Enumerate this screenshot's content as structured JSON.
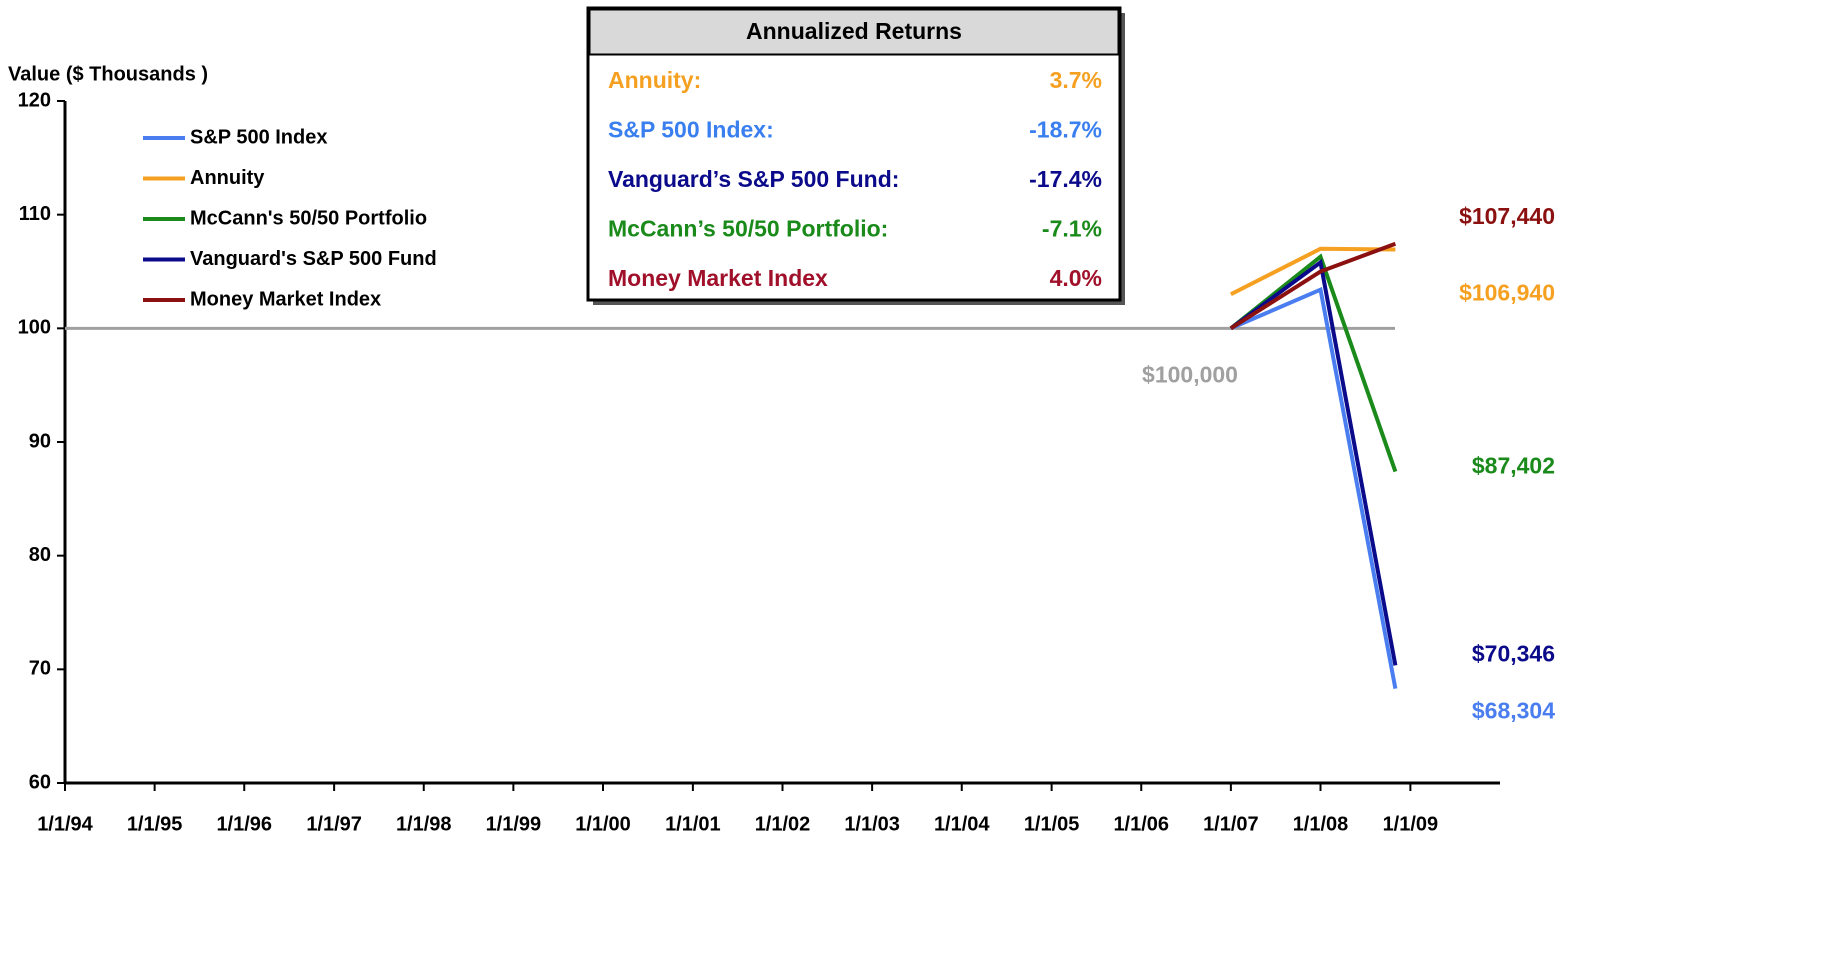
{
  "chart_data": {
    "type": "line",
    "y_axis_label": "Value ($ Thousands )",
    "x": [
      "2007-01-01",
      "2008-01-01",
      "2008-11-01"
    ],
    "xlim": [
      "1994-01-01",
      "2010-01-01"
    ],
    "xticks": [
      {
        "value": "1994-01-01",
        "label": "1/1/94"
      },
      {
        "value": "1995-01-01",
        "label": "1/1/95"
      },
      {
        "value": "1996-01-01",
        "label": "1/1/96"
      },
      {
        "value": "1997-01-01",
        "label": "1/1/97"
      },
      {
        "value": "1998-01-01",
        "label": "1/1/98"
      },
      {
        "value": "1999-01-01",
        "label": "1/1/99"
      },
      {
        "value": "2000-01-01",
        "label": "1/1/00"
      },
      {
        "value": "2001-01-01",
        "label": "1/1/01"
      },
      {
        "value": "2002-01-01",
        "label": "1/1/02"
      },
      {
        "value": "2003-01-01",
        "label": "1/1/03"
      },
      {
        "value": "2004-01-01",
        "label": "1/1/04"
      },
      {
        "value": "2005-01-01",
        "label": "1/1/05"
      },
      {
        "value": "2006-01-01",
        "label": "1/1/06"
      },
      {
        "value": "2007-01-01",
        "label": "1/1/07"
      },
      {
        "value": "2008-01-01",
        "label": "1/1/08"
      },
      {
        "value": "2009-01-01",
        "label": "1/1/09"
      }
    ],
    "ylim": [
      60,
      120
    ],
    "yticks": [
      60,
      70,
      80,
      90,
      100,
      110,
      120
    ],
    "series": [
      {
        "name": "S&P 500 Index",
        "color": "#4a7ef0",
        "values": [
          100,
          103.4,
          68.304
        ],
        "value_labels": [
          null,
          null,
          "$68,304"
        ]
      },
      {
        "name": "Annuity",
        "color": "#f5a020",
        "values": [
          103,
          107,
          106.94
        ],
        "value_labels": [
          null,
          null,
          "$106,940"
        ]
      },
      {
        "name": "McCann's 50/50 Portfolio",
        "color": "#1a8a1a",
        "values": [
          100,
          106.3,
          87.402
        ],
        "value_labels": [
          null,
          null,
          "$87,402"
        ]
      },
      {
        "name": "Vanguard's S&P 500 Fund",
        "color": "#0a0a8a",
        "values": [
          100,
          105.8,
          70.346
        ],
        "value_labels": [
          null,
          null,
          "$70,346"
        ]
      },
      {
        "name": "Money Market Index",
        "color": "#8b1010",
        "values": [
          100,
          105,
          107.44
        ],
        "value_labels": [
          null,
          null,
          "$107,440"
        ]
      }
    ],
    "reference_line": {
      "value": 100,
      "label": "$100,000",
      "color": "#a0a0a0"
    },
    "returns_box": {
      "title": "Annualized Returns",
      "rows": [
        {
          "name": "Annuity:",
          "value": "3.7%",
          "color": "#f5a020"
        },
        {
          "name": "S&P 500 Index:",
          "value": "-18.7%",
          "color": "#3a7ff0"
        },
        {
          "name": "Vanguard’s S&P 500 Fund:",
          "value": "-17.4%",
          "color": "#0a0a8a"
        },
        {
          "name": "McCann’s 50/50 Portfolio:",
          "value": "-7.1%",
          "color": "#1a8a1a"
        },
        {
          "name": "Money Market Index",
          "value": "4.0%",
          "color": "#a0102a"
        }
      ]
    }
  }
}
